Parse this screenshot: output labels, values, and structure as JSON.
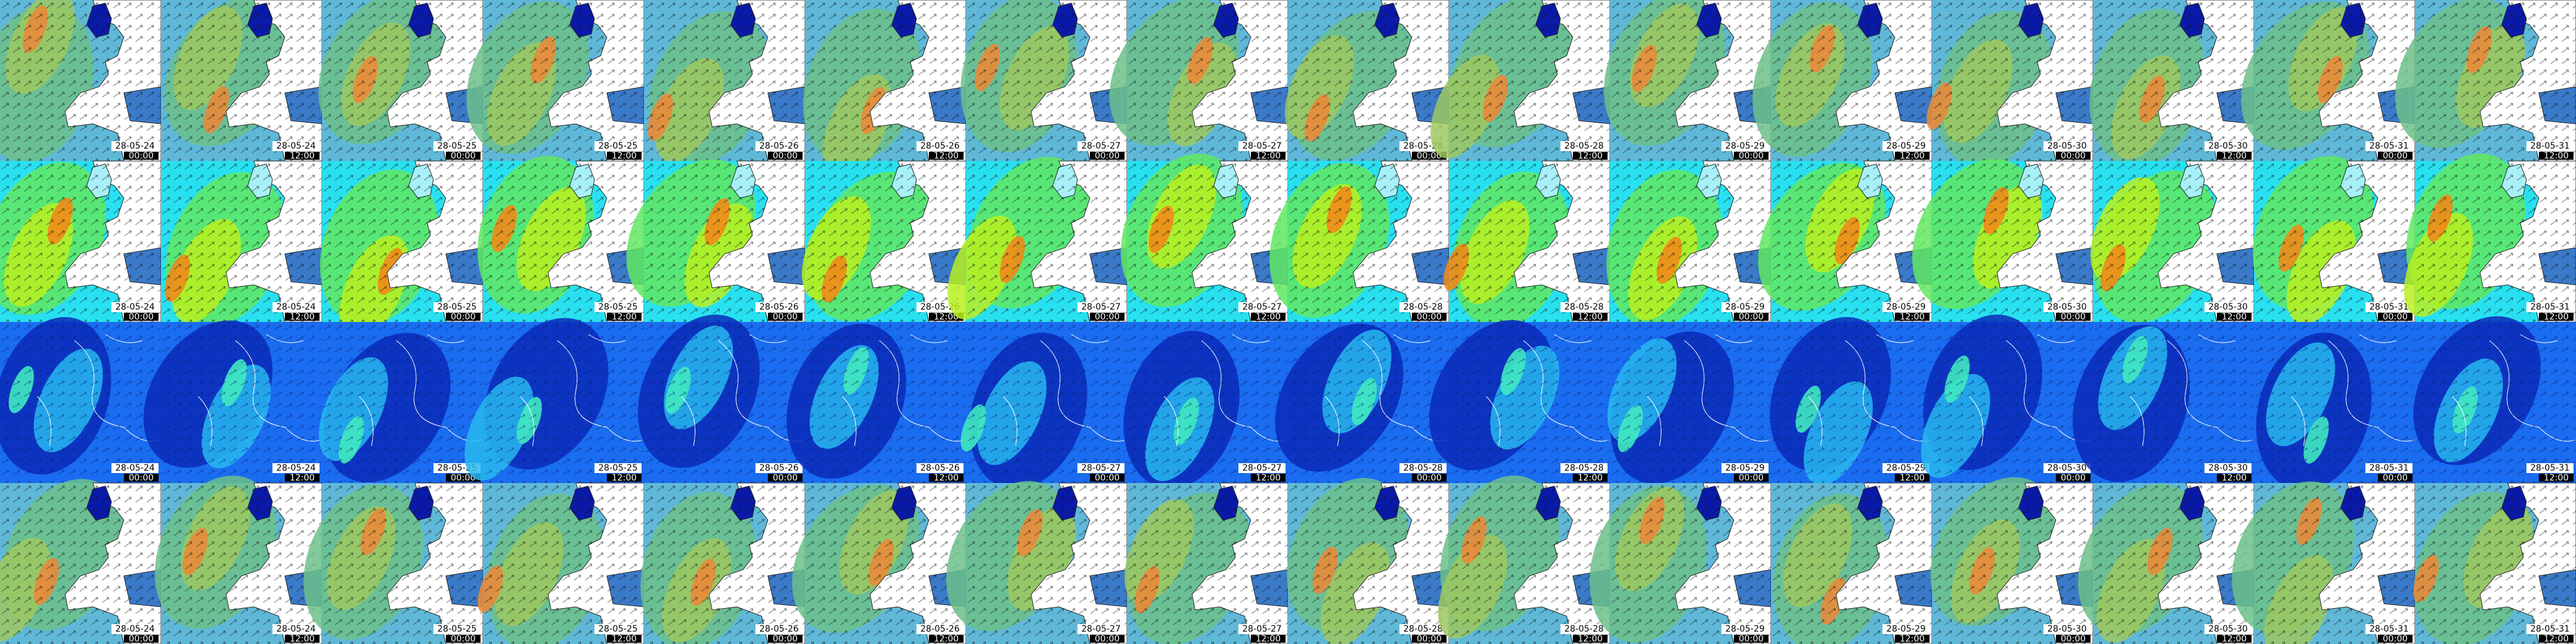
{
  "columns": [
    {
      "date": "28-05-24",
      "time": "00:00"
    },
    {
      "date": "28-05-24",
      "time": "12:00"
    },
    {
      "date": "28-05-25",
      "time": "00:00"
    },
    {
      "date": "28-05-25",
      "time": "12:00"
    },
    {
      "date": "28-05-26",
      "time": "00:00"
    },
    {
      "date": "28-05-26",
      "time": "12:00"
    },
    {
      "date": "28-05-27",
      "time": "00:00"
    },
    {
      "date": "28-05-27",
      "time": "12:00"
    },
    {
      "date": "28-05-28",
      "time": "00:00"
    },
    {
      "date": "28-05-28",
      "time": "12:00"
    },
    {
      "date": "28-05-29",
      "time": "00:00"
    },
    {
      "date": "28-05-29",
      "time": "12:00"
    },
    {
      "date": "28-05-30",
      "time": "00:00"
    },
    {
      "date": "28-05-30",
      "time": "12:00"
    },
    {
      "date": "28-05-31",
      "time": "00:00"
    },
    {
      "date": "28-05-31",
      "time": "12:00"
    }
  ]
}
